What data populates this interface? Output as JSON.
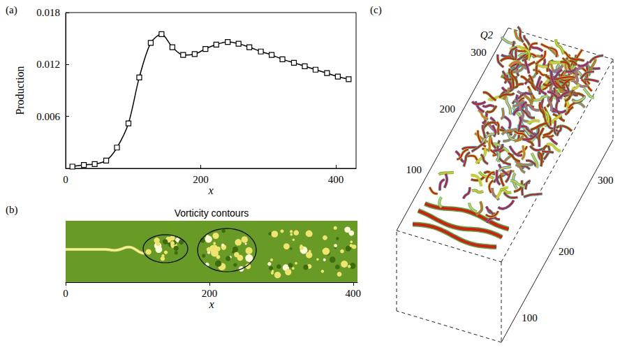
{
  "chart_data": {
    "panel": "(a)",
    "type": "line",
    "xlabel": "x",
    "ylabel": "Production",
    "x": [
      10,
      27,
      43,
      60,
      76,
      93,
      109,
      126,
      142,
      158,
      174,
      191,
      207,
      223,
      240,
      256,
      272,
      289,
      305,
      321,
      338,
      354,
      370,
      387,
      403,
      419
    ],
    "values": [
      0.0002,
      0.0004,
      0.0005,
      0.0009,
      0.0024,
      0.0052,
      0.0105,
      0.0145,
      0.0155,
      0.014,
      0.0131,
      0.0132,
      0.0138,
      0.0143,
      0.0146,
      0.0144,
      0.014,
      0.0135,
      0.0131,
      0.0126,
      0.0122,
      0.0118,
      0.0114,
      0.011,
      0.0106,
      0.0103
    ],
    "color": "#000000",
    "marker": "square",
    "line_style": "solid",
    "xlim": [
      0,
      430
    ],
    "xticks": [
      0,
      200,
      400
    ],
    "ylim": [
      0,
      0.018
    ],
    "yticks": [
      0.006,
      0.012,
      0.018
    ],
    "grid": false
  },
  "panel_b": {
    "panel": "(b)",
    "title": "Vorticity contours",
    "xlabel": "x",
    "xlim": [
      0,
      406
    ],
    "xticks": [
      0,
      200,
      400
    ]
  },
  "panel_c": {
    "panel": "(c)",
    "label": "Q2",
    "left_ticks": [
      100,
      200,
      300
    ],
    "right_ticks": [
      100,
      200,
      300
    ]
  }
}
